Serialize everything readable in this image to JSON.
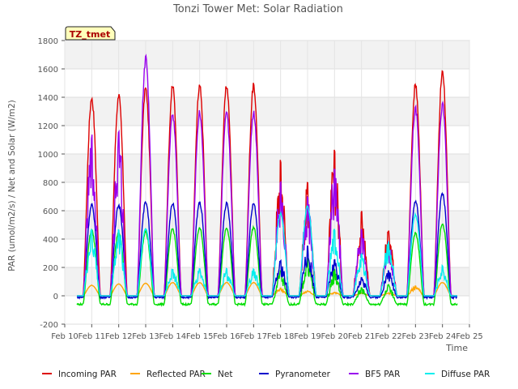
{
  "chart_data": {
    "type": "line",
    "title": "Tonzi Tower Met: Solar Radiation",
    "xlabel": "Time",
    "ylabel": "PAR (umol/m2/s) / Net and Solar (W/m2)",
    "ylim": [
      -200,
      1800
    ],
    "xlim": [
      10,
      25
    ],
    "yticks": [
      -200,
      0,
      200,
      400,
      600,
      800,
      1000,
      1200,
      1400,
      1600,
      1800
    ],
    "xticks": [
      10,
      11,
      12,
      13,
      14,
      15,
      16,
      17,
      18,
      19,
      20,
      21,
      22,
      23,
      24,
      25
    ],
    "xtick_labels": [
      "Feb 10",
      "Feb 11",
      "Feb 12",
      "Feb 13",
      "Feb 14",
      "Feb 15",
      "Feb 16",
      "Feb 17",
      "Feb 18",
      "Feb 19",
      "Feb 20",
      "Feb 21",
      "Feb 22",
      "Feb 23",
      "Feb 24",
      "Feb 25"
    ],
    "grid": true,
    "badge": "TZ_tmet",
    "days": [
      11,
      12,
      13,
      14,
      15,
      16,
      17,
      18,
      19,
      20,
      21,
      22,
      23,
      24
    ],
    "series": [
      {
        "name": "Incoming PAR",
        "color": "#dd0000",
        "night": 0,
        "peaks": [
          1420,
          1430,
          1480,
          1500,
          1500,
          1500,
          1510,
          960,
          810,
          1030,
          600,
          460,
          1510,
          1590
        ]
      },
      {
        "name": "Reflected PAR",
        "color": "#ffa500",
        "night": 0,
        "peaks": [
          75,
          85,
          90,
          95,
          95,
          95,
          95,
          55,
          35,
          25,
          20,
          20,
          70,
          95
        ]
      },
      {
        "name": "Net",
        "color": "#00dd00",
        "night": -60,
        "peaks": [
          470,
          460,
          460,
          480,
          490,
          490,
          490,
          180,
          270,
          190,
          60,
          80,
          450,
          520
        ]
      },
      {
        "name": "Pyranometer",
        "color": "#0000cc",
        "night": -10,
        "peaks": [
          650,
          650,
          670,
          660,
          670,
          660,
          660,
          250,
          350,
          260,
          130,
          180,
          680,
          730
        ]
      },
      {
        "name": "BF5 PAR",
        "color": "#9900ee",
        "night": 0,
        "peaks": [
          1140,
          1160,
          1700,
          1300,
          1310,
          1300,
          1310,
          820,
          700,
          910,
          470,
          390,
          1340,
          1370
        ]
      },
      {
        "name": "Diffuse PAR",
        "color": "#00eeee",
        "night": 0,
        "peaks": [
          470,
          470,
          480,
          190,
          195,
          195,
          190,
          590,
          640,
          470,
          300,
          380,
          580,
          215
        ]
      }
    ]
  }
}
